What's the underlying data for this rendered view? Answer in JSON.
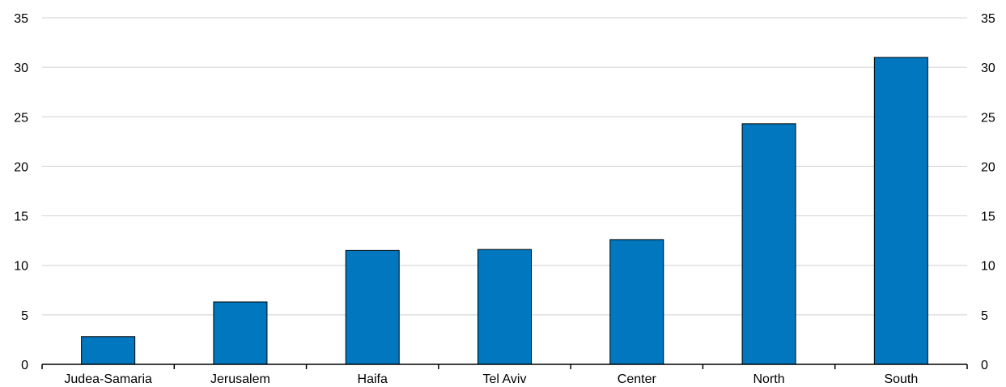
{
  "chart_data": {
    "type": "bar",
    "categories": [
      "Judea-Samaria",
      "Jerusalem",
      "Haifa",
      "Tel Aviv",
      "Center",
      "North",
      "South"
    ],
    "values": [
      2.8,
      6.3,
      11.5,
      11.6,
      12.6,
      24.3,
      31.0
    ],
    "ylim": [
      0,
      35
    ],
    "yticks": [
      0,
      5,
      10,
      15,
      20,
      25,
      30,
      35
    ],
    "secondary_axis": true,
    "grid": true,
    "legend": "none",
    "title": "",
    "xlabel": "",
    "ylabel": ""
  },
  "colors": {
    "bar": "#0077be",
    "bar_stroke": "#000000",
    "grid": "#d9d9d9",
    "axis": "#000000"
  }
}
